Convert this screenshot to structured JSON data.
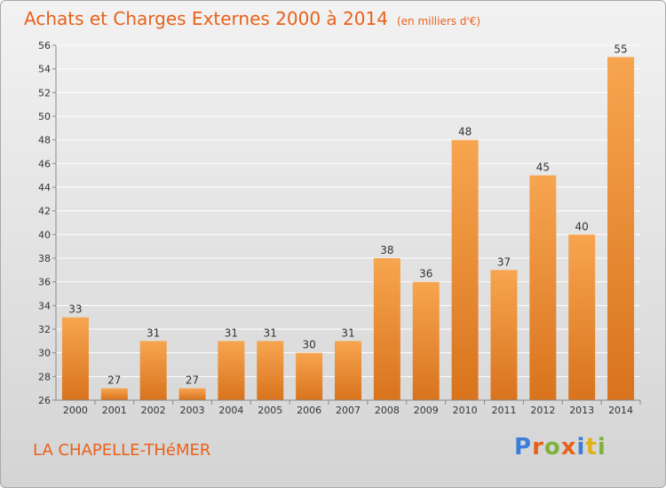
{
  "title": "Achats et Charges Externes 2000 à 2014",
  "subtitle": "(en milliers d'€)",
  "town": "LA CHAPELLE-THéMER",
  "logo": {
    "letters": [
      "P",
      "r",
      "o",
      "x",
      "i",
      "t",
      "i"
    ],
    "colors": [
      "#3b7dd8",
      "#e8611a",
      "#7fb23a",
      "#e8611a",
      "#3b7dd8",
      "#e0b21a",
      "#7fb23a"
    ]
  },
  "colors": {
    "bar_light": "#f7a550",
    "bar_dark": "#d9731d",
    "grid": "#ffffff",
    "axis": "#8a8a8a"
  },
  "chart_data": {
    "type": "bar",
    "categories": [
      "2000",
      "2001",
      "2002",
      "2003",
      "2004",
      "2005",
      "2006",
      "2007",
      "2008",
      "2009",
      "2010",
      "2011",
      "2012",
      "2013",
      "2014"
    ],
    "values": [
      33,
      27,
      31,
      27,
      31,
      31,
      30,
      31,
      38,
      36,
      48,
      37,
      45,
      40,
      55
    ],
    "data_labels": [
      "33",
      "27",
      "31",
      "27",
      "31",
      "31",
      "30",
      "31",
      "38",
      "36",
      "48",
      "37",
      "45",
      "40",
      "55"
    ],
    "ylim": [
      26,
      56
    ],
    "yticks": [
      26,
      28,
      30,
      32,
      34,
      36,
      38,
      40,
      42,
      44,
      46,
      48,
      50,
      52,
      54,
      56
    ],
    "ytick_labels": [
      "26",
      "28",
      "30",
      "32",
      "34",
      "36",
      "38",
      "40",
      "42",
      "44",
      "46",
      "48",
      "50",
      "52",
      "54",
      "56"
    ],
    "grid": true,
    "xlabel": "",
    "ylabel": ""
  }
}
